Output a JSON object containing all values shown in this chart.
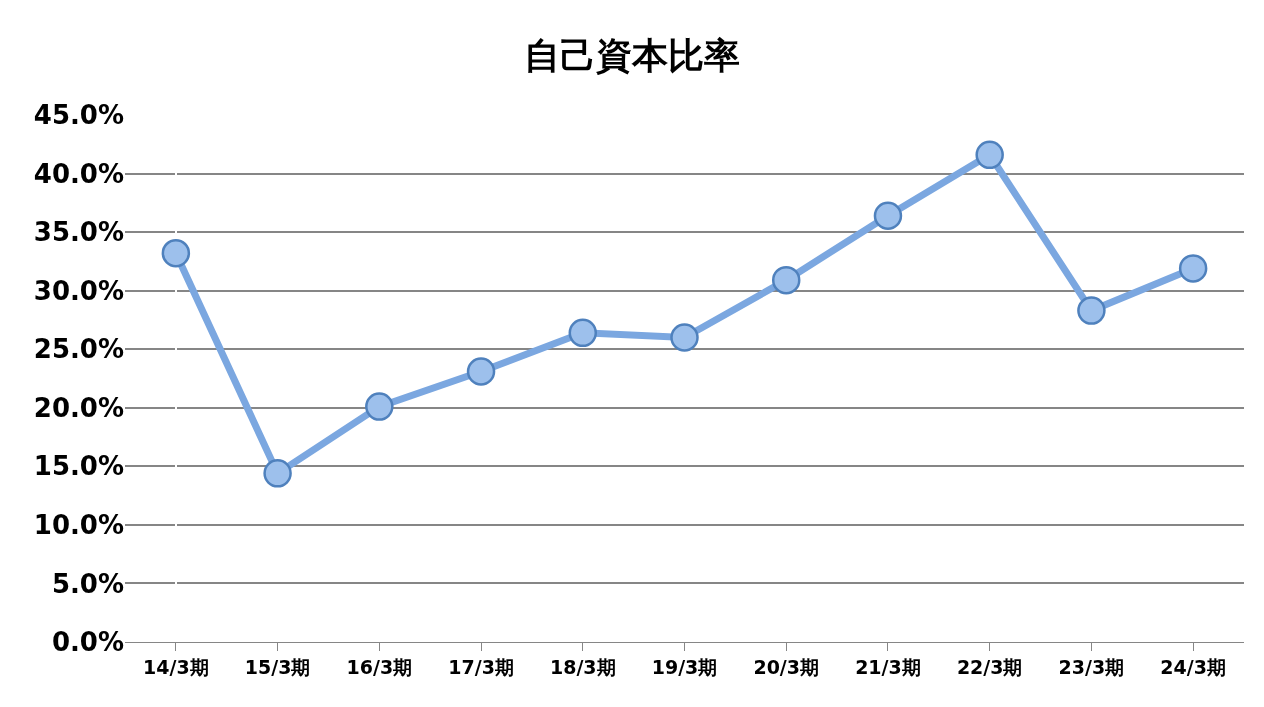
{
  "chart_data": {
    "type": "line",
    "title": "自己資本比率",
    "categories": [
      "14/3期",
      "15/3期",
      "16/3期",
      "17/3期",
      "18/3期",
      "19/3期",
      "20/3期",
      "21/3期",
      "22/3期",
      "23/3期",
      "24/3期"
    ],
    "series": [
      {
        "color": "#7ba7e0",
        "values": [
          33.2,
          14.4,
          20.1,
          23.1,
          26.4,
          26.0,
          30.9,
          36.4,
          41.6,
          28.3,
          31.9
        ]
      }
    ],
    "ylim": [
      0,
      45
    ],
    "yticks": [
      {
        "value": 0,
        "label": "0.0%"
      },
      {
        "value": 5,
        "label": "5.0%"
      },
      {
        "value": 10,
        "label": "10.0%"
      },
      {
        "value": 15,
        "label": "15.0%"
      },
      {
        "value": 20,
        "label": "20.0%"
      },
      {
        "value": 25,
        "label": "25.0%"
      },
      {
        "value": 30,
        "label": "30.0%"
      },
      {
        "value": 35,
        "label": "35.0%"
      },
      {
        "value": 40,
        "label": "40.0%"
      },
      {
        "value": 45,
        "label": "45.0%"
      }
    ],
    "grid": "y",
    "marker": "circle",
    "line_style": "solid"
  }
}
